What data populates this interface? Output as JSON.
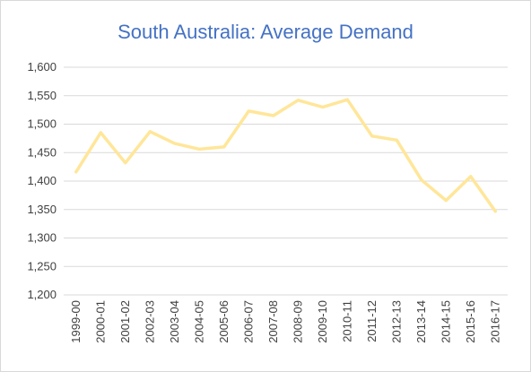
{
  "chart_data": {
    "type": "line",
    "title": "South Australia: Average Demand",
    "xlabel": "",
    "ylabel": "",
    "categories": [
      "1999-00",
      "2000-01",
      "2001-02",
      "2002-03",
      "2003-04",
      "2004-05",
      "2005-06",
      "2006-07",
      "2007-08",
      "2008-09",
      "2009-10",
      "2010-11",
      "2011-12",
      "2012-13",
      "2013-14",
      "2014-15",
      "2015-16",
      "2016-17"
    ],
    "series": [
      {
        "values": [
          1416,
          1485,
          1432,
          1487,
          1466,
          1456,
          1460,
          1523,
          1515,
          1542,
          1530,
          1543,
          1479,
          1472,
          1402,
          1366,
          1408,
          1347
        ]
      }
    ],
    "ylim": [
      1200,
      1600
    ],
    "yticks": [
      "1,200",
      "1,250",
      "1,300",
      "1,350",
      "1,400",
      "1,450",
      "1,500",
      "1,550",
      "1,600"
    ],
    "grid": true,
    "legend": "none",
    "line_color": "#ffe699",
    "grid_color": "#d9d9d9",
    "title_color": "#4472c4"
  }
}
